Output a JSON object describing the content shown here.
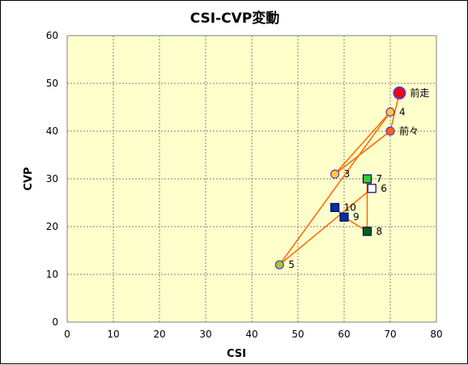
{
  "chart_data": {
    "type": "scatter",
    "title": "CSI-CVP変動",
    "xlabel": "CSI",
    "ylabel": "CVP",
    "xlim": [
      0,
      80
    ],
    "ylim": [
      0,
      60
    ],
    "x_ticks": [
      0,
      10,
      20,
      30,
      40,
      50,
      60,
      70,
      80
    ],
    "y_ticks": [
      0,
      10,
      20,
      30,
      40,
      50,
      60
    ],
    "grid": true,
    "plot_background": "#ffffcc",
    "line_color": "#ff6600",
    "points": [
      {
        "label": "前走",
        "x": 72,
        "y": 48,
        "marker": "circle-large",
        "fill": "#ff0000",
        "stroke": "#6633cc"
      },
      {
        "label": "前々",
        "x": 70,
        "y": 40,
        "marker": "circle",
        "fill": "#ff6600",
        "stroke": "#6633cc"
      },
      {
        "label": "3",
        "x": 58,
        "y": 31,
        "marker": "circle",
        "fill": "#ffcc33",
        "stroke": "#6633cc"
      },
      {
        "label": "4",
        "x": 70,
        "y": 44,
        "marker": "circle",
        "fill": "#ffcc33",
        "stroke": "#6633cc"
      },
      {
        "label": "5",
        "x": 46,
        "y": 12,
        "marker": "circle",
        "fill": "#99cc33",
        "stroke": "#6633cc"
      },
      {
        "label": "6",
        "x": 66,
        "y": 28,
        "marker": "square",
        "fill": "#ffffff",
        "stroke": "#000080"
      },
      {
        "label": "7",
        "x": 65,
        "y": 30,
        "marker": "square",
        "fill": "#33cc33",
        "stroke": "#000080"
      },
      {
        "label": "8",
        "x": 65,
        "y": 19,
        "marker": "square",
        "fill": "#006600",
        "stroke": "#000080"
      },
      {
        "label": "9",
        "x": 60,
        "y": 22,
        "marker": "square",
        "fill": "#003399",
        "stroke": "#000080"
      },
      {
        "label": "10",
        "x": 58,
        "y": 24,
        "marker": "square",
        "fill": "#003399",
        "stroke": "#000080"
      }
    ],
    "path_order": [
      "前走",
      "前々",
      "3",
      "4",
      "5",
      "6",
      "7",
      "8",
      "9",
      "10"
    ]
  }
}
